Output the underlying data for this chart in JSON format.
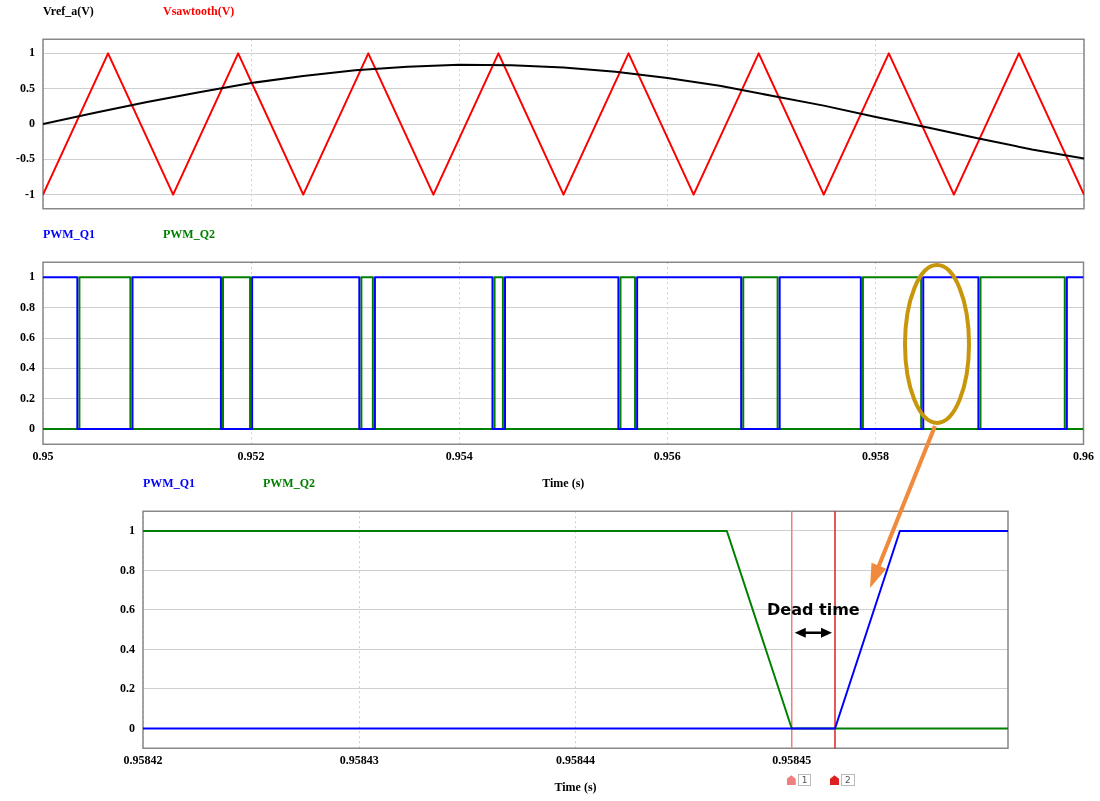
{
  "chart_data": [
    {
      "type": "line",
      "series": [
        {
          "name": "Vref_a(V)",
          "color": "#000000",
          "x": [
            0.95,
            0.9505,
            0.951,
            0.9515,
            0.952,
            0.9525,
            0.953,
            0.9535,
            0.954,
            0.9545,
            0.955,
            0.9555,
            0.956,
            0.9565,
            0.957,
            0.9575,
            0.958,
            0.9585,
            0.959,
            0.9595,
            0.96
          ],
          "values": [
            0,
            0.16,
            0.31,
            0.45,
            0.58,
            0.68,
            0.76,
            0.81,
            0.84,
            0.83,
            0.8,
            0.74,
            0.65,
            0.54,
            0.4,
            0.26,
            0.1,
            -0.05,
            -0.21,
            -0.36,
            -0.49
          ]
        },
        {
          "name": "Vsawtooth(V)",
          "color": "#ff0000",
          "x": [
            0.95,
            0.950625,
            0.95125,
            0.951875,
            0.9525,
            0.953125,
            0.95375,
            0.954375,
            0.955,
            0.955625,
            0.95625,
            0.956875,
            0.9575,
            0.958125,
            0.95875,
            0.959375,
            0.96
          ],
          "values": [
            -1,
            1,
            -1,
            1,
            -1,
            1,
            -1,
            1,
            -1,
            1,
            -1,
            1,
            -1,
            1,
            -1,
            1,
            -1
          ]
        }
      ],
      "xlim": [
        0.95,
        0.96
      ],
      "xticks": [
        0.95,
        0.952,
        0.954,
        0.956,
        0.958,
        0.96
      ],
      "ylim": [
        -1.2,
        1.2
      ],
      "yticks": [
        -1,
        -0.5,
        0,
        0.5,
        1
      ],
      "grid": true,
      "legend": "top left",
      "tick_labels": "y",
      "marker": "none"
    },
    {
      "type": "line",
      "series": [
        {
          "name": "PWM_Q1",
          "color": "#0000ff",
          "x": [
            0.95,
            0.95033,
            0.95033,
            0.95086,
            0.95086,
            0.95171,
            0.95171,
            0.95201,
            0.95201,
            0.95304,
            0.95304,
            0.95319,
            0.95319,
            0.95432,
            0.95432,
            0.95444,
            0.95444,
            0.95553,
            0.95553,
            0.95571,
            0.95571,
            0.95671,
            0.95671,
            0.95708,
            0.95708,
            0.95786,
            0.95786,
            0.95846,
            0.95846,
            0.95899,
            0.95899,
            0.95984,
            0.95984,
            0.96
          ],
          "values": [
            1,
            1,
            0,
            0,
            1,
            1,
            0,
            0,
            1,
            1,
            0,
            0,
            1,
            1,
            0,
            0,
            1,
            1,
            0,
            0,
            1,
            1,
            0,
            0,
            1,
            1,
            0,
            0,
            1,
            1,
            0,
            0,
            1,
            1
          ]
        },
        {
          "name": "PWM_Q2",
          "color": "#008000",
          "x": [
            0.95,
            0.95035,
            0.95035,
            0.95084,
            0.95084,
            0.95173,
            0.95173,
            0.95199,
            0.95199,
            0.95306,
            0.95306,
            0.95317,
            0.95317,
            0.95434,
            0.95434,
            0.95442,
            0.95442,
            0.95555,
            0.95555,
            0.95569,
            0.95569,
            0.95673,
            0.95673,
            0.95706,
            0.95706,
            0.95788,
            0.95788,
            0.95844,
            0.95844,
            0.95901,
            0.95901,
            0.95982,
            0.95982,
            0.96
          ],
          "values": [
            0,
            0,
            1,
            1,
            0,
            0,
            1,
            1,
            0,
            0,
            1,
            1,
            0,
            0,
            1,
            1,
            0,
            0,
            1,
            1,
            0,
            0,
            1,
            1,
            0,
            0,
            1,
            1,
            0,
            0,
            1,
            1,
            0,
            0
          ]
        }
      ],
      "xlabel": "Time (s)",
      "xlim": [
        0.95,
        0.96
      ],
      "xticks": [
        0.95,
        0.952,
        0.954,
        0.956,
        0.958,
        0.96
      ],
      "ylim": [
        -0.1,
        1.1
      ],
      "yticks": [
        0,
        0.2,
        0.4,
        0.6,
        0.8,
        1
      ],
      "grid": true,
      "legend": "top left",
      "marker": "none"
    },
    {
      "type": "line",
      "series": [
        {
          "name": "PWM_Q1",
          "color": "#0000ff",
          "x": [
            0.95842,
            0.958452,
            0.958455,
            0.95846
          ],
          "values": [
            0,
            0,
            1,
            1
          ]
        },
        {
          "name": "PWM_Q2",
          "color": "#008000",
          "x": [
            0.95842,
            0.958447,
            0.95845,
            0.95846
          ],
          "values": [
            1,
            1,
            0,
            0
          ]
        }
      ],
      "xlabel": "Time (s)",
      "xlim": [
        0.95842,
        0.95846
      ],
      "xticks": [
        0.95842,
        0.95843,
        0.95844,
        0.95845
      ],
      "ylim": [
        -0.1,
        1.1
      ],
      "yticks": [
        0,
        0.2,
        0.4,
        0.6,
        0.8,
        1
      ],
      "grid": true,
      "legend": "top left",
      "marker": "none",
      "ref_lines": [
        {
          "axis": "x",
          "value": 0.95845,
          "color": "#f08080"
        },
        {
          "axis": "x",
          "value": 0.958452,
          "color": "#e02020"
        }
      ],
      "annotations": [
        "Dead time",
        "1",
        "2"
      ]
    }
  ]
}
